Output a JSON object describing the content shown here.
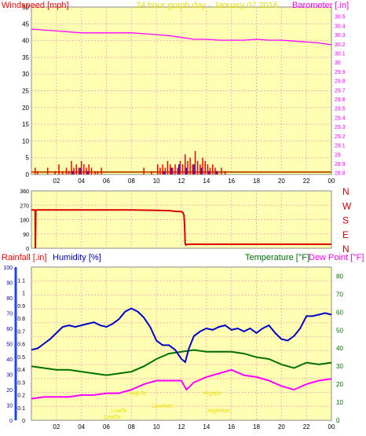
{
  "header": {
    "left_label": "Windspeed [mph]",
    "center_label": "24 hour graph day - January 07 2016",
    "right_label": "Barometer [.in]"
  },
  "colors": {
    "panel_bg": "#ffffb4",
    "grid": "#f5b4b4",
    "wind": "#ff0000",
    "gust": "#0000ff",
    "barometer": "#ff00ff",
    "direction": "#d80000",
    "rain": "#ff0000",
    "humidity": "#0000c8",
    "temperature": "#007000",
    "dewpoint": "#ff00ff",
    "axis_text": "#000000",
    "title_text": "#e8e000"
  },
  "time_ticks": [
    "02",
    "04",
    "06",
    "08",
    "10",
    "12",
    "14",
    "16",
    "18",
    "20",
    "22",
    "00"
  ],
  "chart_data": [
    {
      "type": "line",
      "title": "24 hour graph day - January 07 2016",
      "x_unit": "hour",
      "xlim": [
        0,
        24
      ],
      "ylabel": "Windspeed [mph]",
      "ylim": [
        0,
        50
      ],
      "y_ticks": [
        "0",
        "5",
        "10",
        "15",
        "20",
        "25",
        "30",
        "35",
        "40",
        "45",
        "50"
      ],
      "y2label": "Barometer [.in]",
      "y2lim": [
        28.78,
        30.6
      ],
      "y2_ticks": [
        "28.8",
        "28.9",
        "29",
        "29.1",
        "29.2",
        "29.3",
        "29.4",
        "29.5",
        "29.6",
        "29.7",
        "29.8",
        "29.9",
        "30",
        "30.1",
        "30.2",
        "30.3",
        "30.4",
        "30.5"
      ],
      "series": [
        {
          "name": "Windspeed [mph]",
          "axis": "left",
          "style": "bars",
          "x": [
            0.3,
            0.5,
            1.3,
            1.9,
            2.2,
            2.5,
            2.8,
            3.0,
            3.2,
            3.4,
            3.6,
            3.8,
            4.0,
            4.2,
            4.4,
            4.6,
            4.8,
            5.1,
            5.3,
            5.6,
            9.0,
            9.6,
            10.1,
            10.3,
            10.5,
            10.7,
            10.9,
            11.1,
            11.3,
            11.5,
            11.7,
            11.9,
            12.1,
            12.3,
            12.5,
            12.7,
            12.9,
            13.1,
            13.3,
            13.5,
            13.7,
            13.9,
            14.1,
            14.3,
            14.5,
            14.7,
            14.9,
            15.2,
            15.5
          ],
          "y": [
            2,
            1,
            2,
            1,
            3,
            1,
            2,
            1,
            4,
            2,
            3,
            2,
            4,
            3,
            2,
            3,
            2,
            1,
            1,
            2,
            2,
            1,
            3,
            2,
            3,
            2,
            4,
            3,
            2,
            3,
            2,
            4,
            3,
            6,
            4,
            5,
            3,
            7,
            4,
            3,
            5,
            4,
            3,
            2,
            3,
            2,
            1,
            2,
            1
          ]
        },
        {
          "name": "Gust",
          "axis": "left",
          "style": "bars",
          "x": [
            3.3,
            3.9,
            4.5,
            10.6,
            11.2,
            11.8,
            12.4,
            13.0,
            13.6,
            14.2,
            14.8
          ],
          "y": [
            1,
            2,
            1,
            1,
            2,
            3,
            2,
            3,
            2,
            1,
            1
          ]
        },
        {
          "name": "Barometer [.in]",
          "axis": "right",
          "style": "line",
          "x": [
            0,
            2,
            4,
            6,
            8,
            9,
            10,
            11,
            12,
            12.5,
            13,
            14,
            15,
            16,
            17,
            18,
            19,
            20,
            21,
            22,
            23,
            24
          ],
          "y": [
            30.36,
            30.34,
            30.32,
            30.32,
            30.32,
            30.31,
            30.3,
            30.29,
            30.27,
            30.26,
            30.25,
            30.25,
            30.24,
            30.24,
            30.24,
            30.25,
            30.24,
            30.24,
            30.23,
            30.22,
            30.21,
            30.19
          ]
        }
      ]
    },
    {
      "type": "line",
      "x_unit": "hour",
      "xlim": [
        0,
        24
      ],
      "ylim": [
        0,
        360
      ],
      "y_ticks": [
        "0",
        "90",
        "180",
        "270",
        "360"
      ],
      "direction_labels": [
        "N",
        "W",
        "S",
        "E",
        "N"
      ],
      "series": [
        {
          "name": "Wind direction",
          "style": "line",
          "x": [
            0,
            0.25,
            0.3,
            0.32,
            0.35,
            0.4,
            4,
            8,
            10,
            11,
            11.5,
            12,
            12.1,
            12.2,
            12.25,
            12.3,
            12.35,
            12.4,
            12.5,
            12.6,
            13,
            16,
            20,
            24
          ],
          "y": [
            240,
            240,
            238,
            0,
            238,
            240,
            240,
            240,
            238,
            236,
            232,
            230,
            226,
            210,
            150,
            30,
            20,
            22,
            25,
            25,
            25,
            25,
            25,
            25
          ]
        }
      ]
    },
    {
      "type": "line",
      "x_unit": "hour",
      "xlim": [
        0,
        24
      ],
      "y_left_label": "Rainfall [.in]",
      "y_left_lim": [
        0,
        1.2
      ],
      "y_left_ticks": [
        "0",
        "0.1",
        "0.2",
        "0.3",
        "0.4",
        "0.5",
        "0.6",
        "0.7",
        "0.8",
        "0.9",
        "1",
        "1.1"
      ],
      "y_hum_label": "Humidity [%]",
      "y_hum_lim": [
        0,
        100
      ],
      "y_hum_ticks": [
        "0",
        "10",
        "20",
        "30",
        "40",
        "50",
        "60",
        "70",
        "80",
        "90",
        "100"
      ],
      "y_right_label": "Temperature [°F]",
      "y2label": "Dew Point [°F]",
      "y_right_lim": [
        0,
        85
      ],
      "y_right_ticks": [
        "0",
        "10",
        "20",
        "30",
        "40",
        "50",
        "60",
        "70",
        "80"
      ],
      "annotations": [
        "LowTe",
        "LowDe",
        "HighTe",
        "HighDe",
        "LowHum",
        "HighHum"
      ],
      "series": [
        {
          "name": "Humidity [%]",
          "axis": "humidity",
          "x": [
            0,
            0.5,
            1,
            1.5,
            2,
            2.5,
            3,
            3.5,
            4,
            4.5,
            5,
            5.5,
            6,
            6.5,
            7,
            7.5,
            8,
            8.5,
            9,
            9.5,
            10,
            10.5,
            11,
            11.5,
            12,
            12.3,
            12.6,
            13,
            13.5,
            14,
            14.5,
            15,
            15.5,
            16,
            16.5,
            17,
            17.5,
            18,
            18.5,
            19,
            19.5,
            20,
            20.5,
            21,
            21.5,
            22,
            22.5,
            23,
            23.5,
            24
          ],
          "y": [
            46,
            47,
            50,
            53,
            57,
            61,
            62,
            61,
            62,
            63,
            64,
            62,
            61,
            63,
            66,
            71,
            73,
            71,
            67,
            61,
            52,
            49,
            49,
            46,
            40,
            38,
            47,
            55,
            58,
            60,
            59,
            61,
            62,
            59,
            60,
            58,
            60,
            57,
            60,
            62,
            57,
            53,
            52,
            55,
            60,
            68,
            68,
            69,
            70,
            69
          ]
        },
        {
          "name": "Temperature [°F]",
          "axis": "right",
          "x": [
            0,
            1,
            2,
            3,
            4,
            5,
            6,
            7,
            8,
            9,
            10,
            11,
            12,
            13,
            14,
            15,
            16,
            17,
            18,
            19,
            20,
            21,
            22,
            23,
            24
          ],
          "y": [
            30,
            29,
            28,
            28,
            27,
            26,
            25,
            26,
            27,
            30,
            34,
            37,
            38,
            39,
            38,
            38,
            38,
            37,
            35,
            34,
            31,
            29,
            32,
            31,
            32
          ]
        },
        {
          "name": "Dew Point [°F]",
          "axis": "right",
          "x": [
            0,
            1,
            2,
            3,
            4,
            5,
            6,
            7,
            8,
            9,
            10,
            11,
            12,
            12.4,
            13,
            14,
            15,
            16,
            17,
            18,
            19,
            20,
            21,
            22,
            23,
            24
          ],
          "y": [
            12,
            13,
            13,
            13,
            14,
            14,
            15,
            15,
            17,
            20,
            22,
            22,
            22,
            17,
            21,
            24,
            26,
            28,
            25,
            24,
            22,
            19,
            17,
            20,
            22,
            23
          ]
        }
      ]
    }
  ]
}
